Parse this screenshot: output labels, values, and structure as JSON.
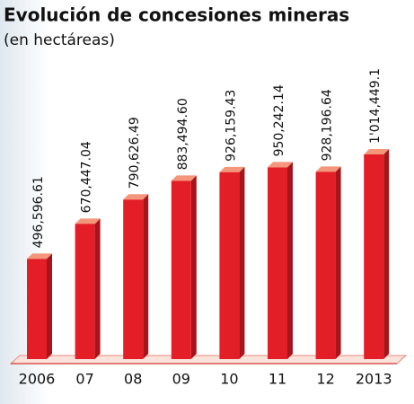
{
  "chart_data": {
    "type": "bar3d",
    "title": "Evolución de concesiones mineras",
    "subtitle": "(en hectáreas)",
    "categories": [
      "2006",
      "07",
      "08",
      "09",
      "10",
      "11",
      "12",
      "2013"
    ],
    "values": [
      496596.61,
      670447.04,
      790626.49,
      883494.6,
      926159.43,
      950242.14,
      928196.64,
      1014449.1
    ],
    "value_labels": [
      "496,596.61",
      "670,447.04",
      "790,626.49",
      "883,494.60",
      "926,159.43",
      "950,242.14",
      "928,196.64",
      "1'014,449.1"
    ],
    "color": "#e31e26"
  }
}
